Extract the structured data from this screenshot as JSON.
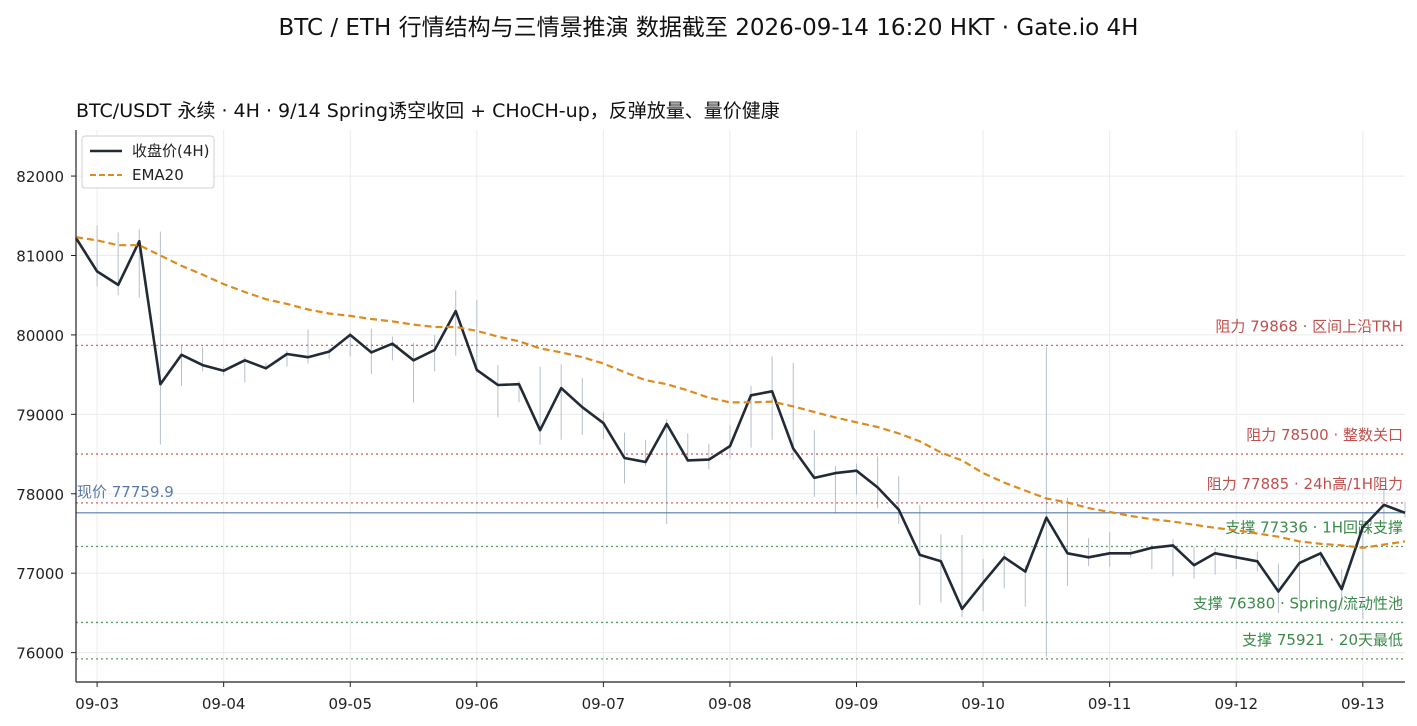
{
  "suptitle": "BTC / ETH 行情结构与三情景推演   数据截至 2026-09-14 16:20 HKT · Gate.io 4H",
  "colors": {
    "close": "#222a35",
    "ema": "#dd8b1e",
    "resistance": "#c0504d",
    "support": "#3b8a4a",
    "current": "#5a7aa8",
    "wick": "#b4bfcc",
    "grid": "#ececec"
  },
  "chart_data": {
    "type": "line",
    "title": "BTC/USDT 永续 · 4H · 9/14 Spring诱空收回 + CHoCH-up，反弹放量、量价健康",
    "xlabel": "",
    "ylabel": "",
    "xlim": [
      0,
      63
    ],
    "ylim": [
      75630,
      82580
    ],
    "x_ticks": [
      {
        "x": 1,
        "label": "09-03"
      },
      {
        "x": 7,
        "label": "09-04"
      },
      {
        "x": 13,
        "label": "09-05"
      },
      {
        "x": 19,
        "label": "09-06"
      },
      {
        "x": 25,
        "label": "09-07"
      },
      {
        "x": 31,
        "label": "09-08"
      },
      {
        "x": 37,
        "label": "09-09"
      },
      {
        "x": 43,
        "label": "09-10"
      },
      {
        "x": 49,
        "label": "09-11"
      },
      {
        "x": 55,
        "label": "09-12"
      },
      {
        "x": 61,
        "label": "09-13"
      }
    ],
    "y_ticks": [
      76000,
      77000,
      78000,
      79000,
      80000,
      81000,
      82000
    ],
    "grid": true,
    "legend_position": "top-left",
    "series": [
      {
        "name": "收盘价(4H)",
        "style": "solid",
        "x": [
          0,
          1,
          2,
          3,
          4,
          5,
          6,
          7,
          8,
          9,
          10,
          11,
          12,
          13,
          14,
          15,
          16,
          17,
          18,
          19,
          20,
          21,
          22,
          23,
          24,
          25,
          26,
          27,
          28,
          29,
          30,
          31,
          32,
          33,
          34,
          35,
          36,
          37,
          38,
          39,
          40,
          41,
          42,
          43,
          44,
          45,
          46,
          47,
          48,
          49,
          50,
          51,
          52,
          53,
          54,
          55,
          56,
          57,
          58,
          59,
          60,
          61,
          62,
          63
        ],
        "values": [
          81220,
          80800,
          80630,
          81180,
          79380,
          79750,
          79620,
          79550,
          79680,
          79580,
          79760,
          79720,
          79790,
          80000,
          79780,
          79890,
          79680,
          79810,
          80300,
          79560,
          79370,
          79380,
          78800,
          79330,
          79090,
          78890,
          78450,
          78400,
          78880,
          78420,
          78430,
          78600,
          79240,
          79290,
          78570,
          78200,
          78260,
          78290,
          78080,
          77800,
          77230,
          77150,
          76550,
          76880,
          77200,
          77020,
          77700,
          77250,
          77200,
          77250,
          77250,
          77320,
          77350,
          77100,
          77250,
          77200,
          77150,
          76770,
          77130,
          77250,
          76800,
          77580,
          77860,
          77760
        ]
      },
      {
        "name": "EMA20",
        "style": "dashed",
        "x": [
          0,
          1,
          2,
          3,
          4,
          5,
          6,
          7,
          8,
          9,
          10,
          11,
          12,
          13,
          14,
          15,
          16,
          17,
          18,
          19,
          20,
          21,
          22,
          23,
          24,
          25,
          26,
          27,
          28,
          29,
          30,
          31,
          32,
          33,
          34,
          35,
          36,
          37,
          38,
          39,
          40,
          41,
          42,
          43,
          44,
          45,
          46,
          47,
          48,
          49,
          50,
          51,
          52,
          53,
          54,
          55,
          56,
          57,
          58,
          59,
          60,
          61,
          62,
          63
        ],
        "values": [
          81230,
          81190,
          81130,
          81130,
          81000,
          80870,
          80760,
          80640,
          80540,
          80450,
          80390,
          80320,
          80270,
          80240,
          80200,
          80170,
          80130,
          80100,
          80100,
          80050,
          79980,
          79920,
          79830,
          79780,
          79720,
          79640,
          79530,
          79430,
          79380,
          79300,
          79210,
          79150,
          79150,
          79160,
          79100,
          79030,
          78960,
          78900,
          78840,
          78760,
          78660,
          78520,
          78420,
          78260,
          78140,
          78040,
          77940,
          77890,
          77820,
          77770,
          77720,
          77680,
          77650,
          77610,
          77570,
          77540,
          77500,
          77460,
          77400,
          77370,
          77350,
          77320,
          77360,
          77400
        ]
      }
    ],
    "wicks_high": [
      81260,
      81380,
      81290,
      81330,
      81300,
      79870,
      79850,
      79600,
      79720,
      79650,
      79800,
      80070,
      79830,
      80040,
      80080,
      79980,
      79900,
      80000,
      80560,
      80440,
      79620,
      79420,
      79600,
      79630,
      79460,
      79030,
      78770,
      78680,
      78940,
      78760,
      78630,
      78860,
      79360,
      79730,
      79650,
      78800,
      78350,
      78380,
      78470,
      78220,
      77860,
      77490,
      77480,
      77180,
      77260,
      77100,
      79850,
      77950,
      77440,
      77520,
      77310,
      77360,
      77430,
      77330,
      77320,
      77310,
      77270,
      77120,
      77400,
      77280,
      77050,
      77760,
      78080,
      77900
    ],
    "wicks_low": [
      80960,
      80610,
      80500,
      80470,
      78620,
      79360,
      79540,
      79490,
      79400,
      79560,
      79600,
      79640,
      79700,
      79730,
      79510,
      79680,
      79150,
      79540,
      79740,
      79520,
      78960,
      79150,
      78620,
      78680,
      78740,
      78690,
      78130,
      78350,
      77620,
      78400,
      78310,
      78440,
      78580,
      78680,
      78430,
      77960,
      77750,
      77990,
      77820,
      77620,
      76600,
      76630,
      76450,
      76520,
      76810,
      76580,
      75950,
      76840,
      77090,
      77080,
      77190,
      77050,
      76960,
      76930,
      76980,
      77050,
      77020,
      76500,
      76650,
      77100,
      76550,
      76420,
      77530,
      77700
    ],
    "levels": [
      {
        "value": 79868,
        "kind": "resistance",
        "label": "阻力 79868 · 区间上沿TRH"
      },
      {
        "value": 78500,
        "kind": "resistance",
        "label": "阻力 78500 · 整数关口"
      },
      {
        "value": 77885,
        "kind": "resistance",
        "label": "阻力 77885 · 24h高/1H阻力"
      },
      {
        "value": 77336,
        "kind": "support",
        "label": "支撑 77336 · 1H回踩支撑"
      },
      {
        "value": 76380,
        "kind": "support",
        "label": "支撑 76380 · Spring/流动性池"
      },
      {
        "value": 75921,
        "kind": "support",
        "label": "支撑 75921 · 20天最低"
      }
    ],
    "current_price": {
      "value": 77759.9,
      "label": "现价 77759.9"
    },
    "legend": [
      "收盘价(4H)",
      "EMA20"
    ]
  }
}
